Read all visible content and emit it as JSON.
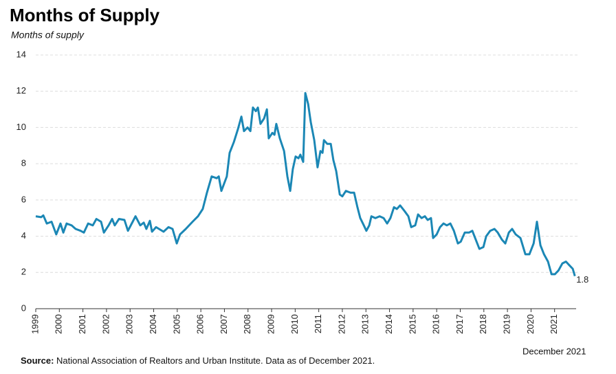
{
  "chart_data": {
    "type": "line",
    "title": "Months of Supply",
    "subtitle": "Months of supply",
    "annotation": "December 2021",
    "source_label": "Source:",
    "source_text": "National Association of Realtors and Urban Institute. Data as of December 2021.",
    "xlim": [
      1999,
      2022
    ],
    "xticks": [
      1999,
      2000,
      2001,
      2002,
      2003,
      2004,
      2005,
      2006,
      2007,
      2008,
      2009,
      2010,
      2011,
      2012,
      2013,
      2014,
      2015,
      2016,
      2017,
      2018,
      2019,
      2020,
      2021
    ],
    "ylim": [
      0,
      14
    ],
    "yticks": [
      0,
      2,
      4,
      6,
      8,
      10,
      12,
      14
    ],
    "grid": true,
    "x": [
      1999.0,
      1999.23,
      1999.32,
      1999.47,
      1999.67,
      1999.87,
      2000.05,
      2000.17,
      2000.31,
      2000.52,
      2000.69,
      2000.9,
      2001.04,
      2001.22,
      2001.42,
      2001.57,
      2001.77,
      2001.89,
      2002.09,
      2002.24,
      2002.35,
      2002.53,
      2002.76,
      2002.91,
      2003.11,
      2003.23,
      2003.43,
      2003.58,
      2003.69,
      2003.84,
      2003.93,
      2004.1,
      2004.42,
      2004.63,
      2004.8,
      2004.98,
      2005.12,
      2005.36,
      2005.65,
      2005.88,
      2006.08,
      2006.26,
      2006.46,
      2006.67,
      2006.76,
      2006.87,
      2007.1,
      2007.22,
      2007.4,
      2007.57,
      2007.72,
      2007.83,
      2007.98,
      2008.1,
      2008.21,
      2008.33,
      2008.42,
      2008.53,
      2008.68,
      2008.8,
      2008.88,
      2009.03,
      2009.12,
      2009.2,
      2009.35,
      2009.53,
      2009.67,
      2009.79,
      2009.9,
      2010.02,
      2010.14,
      2010.22,
      2010.34,
      2010.43,
      2010.55,
      2010.66,
      2010.81,
      2010.95,
      2011.07,
      2011.16,
      2011.22,
      2011.36,
      2011.51,
      2011.62,
      2011.74,
      2011.89,
      2012.0,
      2012.15,
      2012.35,
      2012.5,
      2012.64,
      2012.76,
      2012.91,
      2013.02,
      2013.14,
      2013.23,
      2013.4,
      2013.58,
      2013.75,
      2013.9,
      2014.04,
      2014.19,
      2014.31,
      2014.45,
      2014.63,
      2014.8,
      2014.92,
      2015.09,
      2015.21,
      2015.36,
      2015.5,
      2015.62,
      2015.76,
      2015.85,
      2016.0,
      2016.14,
      2016.29,
      2016.43,
      2016.58,
      2016.73,
      2016.9,
      2017.02,
      2017.19,
      2017.37,
      2017.51,
      2017.63,
      2017.81,
      2017.98,
      2018.1,
      2018.27,
      2018.45,
      2018.59,
      2018.77,
      2018.91,
      2019.06,
      2019.2,
      2019.35,
      2019.55,
      2019.76,
      2019.93,
      2020.11,
      2020.25,
      2020.4,
      2020.55,
      2020.72,
      2020.87,
      2021.01,
      2021.16,
      2021.33,
      2021.48,
      2021.62,
      2021.77,
      2021.86
    ],
    "series": [
      {
        "name": "Months of supply",
        "color": "#1b87b5",
        "values": [
          5.1,
          5.05,
          5.15,
          4.7,
          4.8,
          4.1,
          4.7,
          4.2,
          4.7,
          4.6,
          4.4,
          4.3,
          4.2,
          4.7,
          4.6,
          4.95,
          4.8,
          4.2,
          4.6,
          4.95,
          4.6,
          4.95,
          4.9,
          4.3,
          4.8,
          5.1,
          4.6,
          4.75,
          4.4,
          4.85,
          4.25,
          4.5,
          4.25,
          4.5,
          4.4,
          3.6,
          4.1,
          4.4,
          4.8,
          5.1,
          5.5,
          6.4,
          7.3,
          7.2,
          7.3,
          6.5,
          7.3,
          8.6,
          9.2,
          9.9,
          10.6,
          9.8,
          10.0,
          9.8,
          11.1,
          10.9,
          11.1,
          10.2,
          10.5,
          11.0,
          9.4,
          9.7,
          9.6,
          10.2,
          9.4,
          8.7,
          7.3,
          6.5,
          7.7,
          8.4,
          8.3,
          8.5,
          8.1,
          11.9,
          11.3,
          10.3,
          9.3,
          7.8,
          8.7,
          8.6,
          9.3,
          9.1,
          9.1,
          8.2,
          7.6,
          6.3,
          6.2,
          6.5,
          6.4,
          6.4,
          5.6,
          5.0,
          4.6,
          4.3,
          4.6,
          5.1,
          5.0,
          5.1,
          5.0,
          4.7,
          5.0,
          5.6,
          5.5,
          5.7,
          5.4,
          5.1,
          4.5,
          4.6,
          5.2,
          5.0,
          5.1,
          4.9,
          5.0,
          3.9,
          4.1,
          4.5,
          4.7,
          4.6,
          4.7,
          4.3,
          3.6,
          3.7,
          4.2,
          4.2,
          4.3,
          3.9,
          3.3,
          3.4,
          4.0,
          4.3,
          4.4,
          4.2,
          3.8,
          3.6,
          4.2,
          4.4,
          4.1,
          3.9,
          3.0,
          3.0,
          3.6,
          4.8,
          3.5,
          3.0,
          2.6,
          1.9,
          1.9,
          2.1,
          2.5,
          2.6,
          2.4,
          2.2,
          1.8
        ]
      }
    ]
  }
}
